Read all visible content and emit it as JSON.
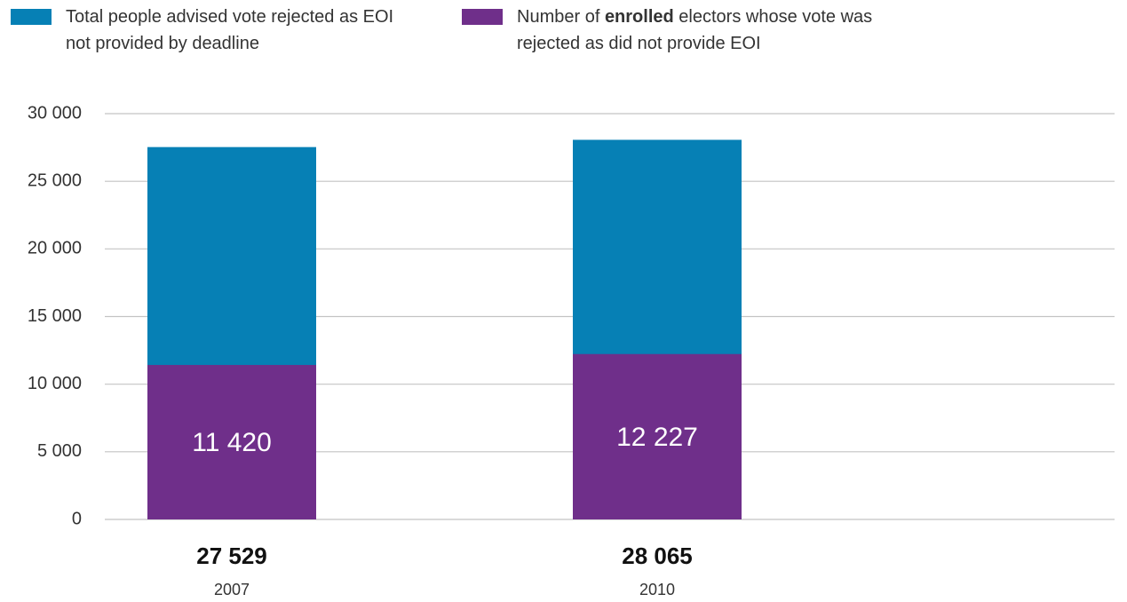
{
  "chart_data": {
    "type": "overlapping-bar",
    "categories": [
      "2007",
      "2010"
    ],
    "series": [
      {
        "name": "Total people advised vote rejected as EOI not provided by deadline",
        "color": "#0680b5",
        "values": [
          27529,
          28065
        ],
        "value_labels": [
          "27 529",
          "28 065"
        ]
      },
      {
        "name": "Number of enrolled electors whose vote was rejected as did not provide EOI",
        "emphasis": "enrolled",
        "color": "#6f2f8a",
        "values": [
          11420,
          12227
        ],
        "value_labels": [
          "11 420",
          "12 227"
        ]
      }
    ],
    "ylim": [
      0,
      30000
    ],
    "yticks": [
      0,
      {
        "value": 5000,
        "label": "5 000"
      },
      {
        "value": 10000,
        "label": "10 000"
      },
      {
        "value": 15000,
        "label": "15 000"
      },
      {
        "value": 20000,
        "label": "20 000"
      },
      {
        "value": 25000,
        "label": "25 000"
      },
      {
        "value": 30000,
        "label": "30 000"
      }
    ],
    "grid": true
  }
}
